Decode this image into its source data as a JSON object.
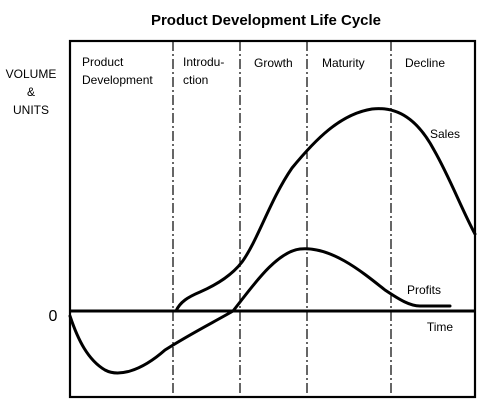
{
  "title": "Product Development Life Cycle",
  "y_axis_label": [
    "VOLUME",
    "&",
    "UNITS"
  ],
  "zero_label": "0",
  "x_axis_label": "Time",
  "stages": [
    {
      "lines": [
        "Product",
        "Development"
      ]
    },
    {
      "lines": [
        "Introdu-",
        "ction"
      ]
    },
    {
      "lines": [
        "Growth"
      ]
    },
    {
      "lines": [
        "Maturity"
      ]
    },
    {
      "lines": [
        "Decline"
      ]
    }
  ],
  "curves": {
    "sales_label": "Sales",
    "profits_label": "Profits"
  }
}
